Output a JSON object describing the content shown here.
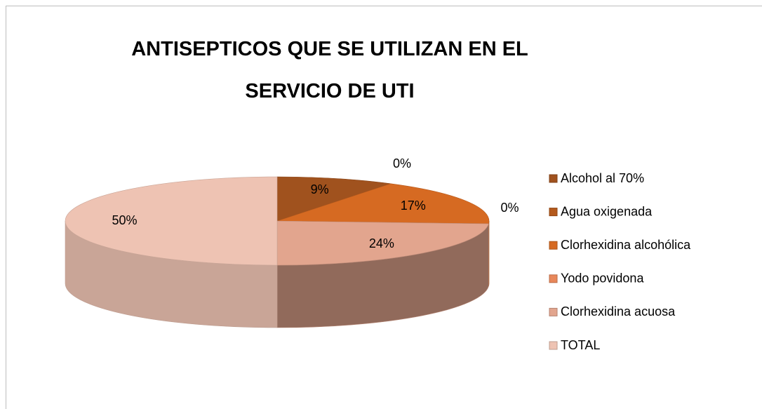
{
  "chart_data": {
    "type": "pie3d",
    "title": "ANTISEPTICOS QUE SE UTILIZAN EN EL SERVICIO DE UTI",
    "categories": [
      "Alcohol al 70%",
      "Agua oxigenada",
      "Clorhexidina  alcohólica",
      "Yodo povidona",
      "Clorhexidina acuosa",
      "TOTAL"
    ],
    "values": [
      9,
      0,
      17,
      0,
      24,
      50
    ],
    "value_labels": [
      "9%",
      "0%",
      "17%",
      "0%",
      "24%",
      "50%"
    ],
    "colors": [
      "#a0521e",
      "#b4591c",
      "#d66a22",
      "#e8875a",
      "#e2a58e",
      "#eec3b3"
    ],
    "legend": "right"
  }
}
